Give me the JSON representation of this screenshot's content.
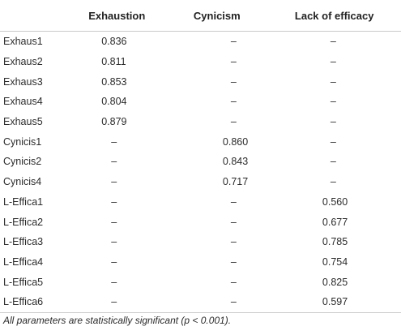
{
  "table": {
    "headers": [
      "",
      "Exhaustion",
      "Cynicism",
      "Lack of efficacy"
    ],
    "rows": [
      {
        "item": "Exhaus1",
        "exhaustion": "0.836",
        "cynicism": "–",
        "efficacy": "–"
      },
      {
        "item": "Exhaus2",
        "exhaustion": "0.811",
        "cynicism": "–",
        "efficacy": "–"
      },
      {
        "item": "Exhaus3",
        "exhaustion": "0.853",
        "cynicism": "–",
        "efficacy": "–"
      },
      {
        "item": "Exhaus4",
        "exhaustion": "0.804",
        "cynicism": "–",
        "efficacy": "–"
      },
      {
        "item": "Exhaus5",
        "exhaustion": "0.879",
        "cynicism": "–",
        "efficacy": "–"
      },
      {
        "item": "Cynicis1",
        "exhaustion": "–",
        "cynicism": "0.860",
        "efficacy": "–"
      },
      {
        "item": "Cynicis2",
        "exhaustion": "–",
        "cynicism": "0.843",
        "efficacy": "–"
      },
      {
        "item": "Cynicis4",
        "exhaustion": "–",
        "cynicism": "0.717",
        "efficacy": "–"
      },
      {
        "item": "L-Effica1",
        "exhaustion": "–",
        "cynicism": "–",
        "efficacy": "0.560"
      },
      {
        "item": "L-Effica2",
        "exhaustion": "–",
        "cynicism": "–",
        "efficacy": "0.677"
      },
      {
        "item": "L-Effica3",
        "exhaustion": "–",
        "cynicism": "–",
        "efficacy": "0.785"
      },
      {
        "item": "L-Effica4",
        "exhaustion": "–",
        "cynicism": "–",
        "efficacy": "0.754"
      },
      {
        "item": "L-Effica5",
        "exhaustion": "–",
        "cynicism": "–",
        "efficacy": "0.825"
      },
      {
        "item": "L-Effica6",
        "exhaustion": "–",
        "cynicism": "–",
        "efficacy": "0.597"
      }
    ]
  },
  "footnote": "All parameters are statistically significant (p < 0.001)."
}
